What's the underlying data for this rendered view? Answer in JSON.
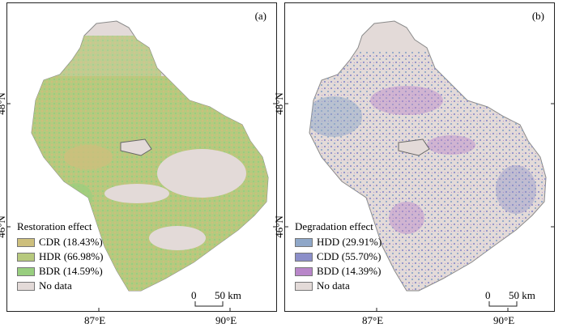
{
  "panels": [
    {
      "label": "(a)",
      "legend_title": "Restoration effect",
      "legend": [
        {
          "label": "CDR (18.43%)",
          "color": "#cdbf7d"
        },
        {
          "label": "HDR (66.98%)",
          "color": "#b7c97e"
        },
        {
          "label": "BDR (14.59%)",
          "color": "#98ce7f"
        },
        {
          "label": "No data",
          "color": "#e3dad8"
        }
      ]
    },
    {
      "label": "(b)",
      "legend_title": "Degradation effect",
      "legend": [
        {
          "label": "HDD (29.91%)",
          "color": "#8fa7c8"
        },
        {
          "label": "CDD (55.70%)",
          "color": "#8c8fc9"
        },
        {
          "label": "BDD (14.39%)",
          "color": "#b886c9"
        },
        {
          "label": "No data",
          "color": "#e3dad8"
        }
      ]
    }
  ],
  "scalebar": {
    "zero": "0",
    "distance": "50 km"
  },
  "axes": {
    "lon_ticks": [
      "87°E",
      "90°E"
    ],
    "lat_ticks": [
      "48°N",
      "46°N"
    ]
  },
  "colors": {
    "nodata": "#e3dad8",
    "outline": "#8a8a8a"
  }
}
